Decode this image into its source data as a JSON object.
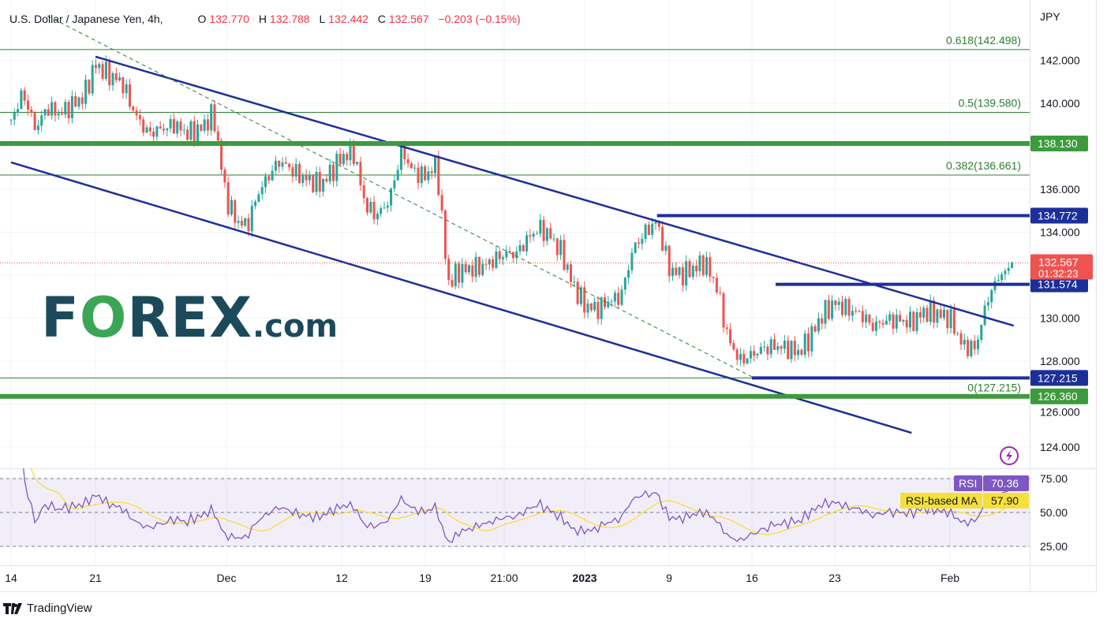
{
  "header": {
    "symbol": "U.S. Dollar / Japanese Yen, 4h,",
    "open_label": "O",
    "open": "132.770",
    "high_label": "H",
    "high": "132.788",
    "low_label": "L",
    "low": "132.442",
    "close_label": "C",
    "close": "132.567",
    "change": "−0.203 (−0.15%)"
  },
  "logo": {
    "text": "FOREX.com"
  },
  "footer": {
    "brand": "TradingView"
  },
  "colors": {
    "up": "#26a69a",
    "down": "#ef5350",
    "channel": "#1c2f99",
    "support": "#3d9a3d",
    "fib": "#2e7d32",
    "rsi": "#7e57c2",
    "rsi_ma": "#f5e03a"
  },
  "chart_data": {
    "type": "candlestick",
    "currency_label": "JPY",
    "y_ticks": [
      "142.000",
      "140.000",
      "138.000",
      "136.000",
      "134.000",
      "132.000",
      "130.000",
      "128.000",
      "126.000",
      "124.000"
    ],
    "ylim": [
      122.2,
      144.6
    ],
    "x_ticks": [
      "14",
      "21",
      "Dec",
      "12",
      "19",
      "21:00",
      "2023",
      "9",
      "16",
      "23",
      "Feb"
    ],
    "price_path": [
      [
        "2022-11-14",
        139.2
      ],
      [
        "2022-11-15",
        140.5
      ],
      [
        "2022-11-16",
        138.8
      ],
      [
        "2022-11-17",
        139.8
      ],
      [
        "2022-11-18",
        139.5
      ],
      [
        "2022-11-20",
        140.3
      ],
      [
        "2022-11-21",
        141.8
      ],
      [
        "2022-11-22",
        141.3
      ],
      [
        "2022-11-23",
        141.0
      ],
      [
        "2022-11-24",
        139.5
      ],
      [
        "2022-11-25",
        138.6
      ],
      [
        "2022-11-27",
        139.0
      ],
      [
        "2022-11-28",
        138.6
      ],
      [
        "2022-11-29",
        138.8
      ],
      [
        "2022-11-30",
        139.5
      ],
      [
        "2022-12-01",
        135.5
      ],
      [
        "2022-12-02",
        134.5
      ],
      [
        "2022-12-03",
        134.3
      ],
      [
        "2022-12-04",
        135.8
      ],
      [
        "2022-12-05",
        136.6
      ],
      [
        "2022-12-06",
        137.3
      ],
      [
        "2022-12-07",
        137.0
      ],
      [
        "2022-12-08",
        136.6
      ],
      [
        "2022-12-09",
        136.4
      ],
      [
        "2022-12-10",
        136.2
      ],
      [
        "2022-12-11",
        136.8
      ],
      [
        "2022-12-12",
        137.5
      ],
      [
        "2022-12-13",
        137.7
      ],
      [
        "2022-12-14",
        135.2
      ],
      [
        "2022-12-15",
        134.8
      ],
      [
        "2022-12-16",
        135.5
      ],
      [
        "2022-12-17",
        137.8
      ],
      [
        "2022-12-18",
        136.8
      ],
      [
        "2022-12-19",
        136.6
      ],
      [
        "2022-12-20",
        137.2
      ],
      [
        "2022-12-21",
        131.6
      ],
      [
        "2022-12-22",
        132.2
      ],
      [
        "2022-12-24",
        132.4
      ],
      [
        "2022-12-26",
        133.0
      ],
      [
        "2022-12-27",
        133.0
      ],
      [
        "2022-12-28",
        133.7
      ],
      [
        "2022-12-29",
        134.2
      ],
      [
        "2022-12-30",
        133.8
      ],
      [
        "2022-12-31",
        133.0
      ],
      [
        "2023-01-01",
        131.5
      ],
      [
        "2023-01-02",
        130.6
      ],
      [
        "2023-01-03",
        130.4
      ],
      [
        "2023-01-04",
        130.8
      ],
      [
        "2023-01-05",
        131.0
      ],
      [
        "2023-01-06",
        133.2
      ],
      [
        "2023-01-07",
        134.0
      ],
      [
        "2023-01-08",
        134.5
      ],
      [
        "2023-01-09",
        132.3
      ],
      [
        "2023-01-10",
        132.0
      ],
      [
        "2023-01-11",
        132.3
      ],
      [
        "2023-01-12",
        132.6
      ],
      [
        "2023-01-13",
        131.5
      ],
      [
        "2023-01-14",
        129.0
      ],
      [
        "2023-01-15",
        128.0
      ],
      [
        "2023-01-16",
        128.3
      ],
      [
        "2023-01-17",
        128.6
      ],
      [
        "2023-01-18",
        128.7
      ],
      [
        "2023-01-19",
        128.6
      ],
      [
        "2023-01-20",
        128.4
      ],
      [
        "2023-01-21",
        129.2
      ],
      [
        "2023-01-22",
        130.2
      ],
      [
        "2023-01-23",
        130.7
      ],
      [
        "2023-01-24",
        130.4
      ],
      [
        "2023-01-25",
        130.2
      ],
      [
        "2023-01-26",
        129.6
      ],
      [
        "2023-01-27",
        129.9
      ],
      [
        "2023-01-28",
        129.9
      ],
      [
        "2023-01-29",
        129.8
      ],
      [
        "2023-01-30",
        130.3
      ],
      [
        "2023-01-31",
        130.2
      ],
      [
        "2023-02-01",
        130.0
      ],
      [
        "2023-02-02",
        128.7
      ],
      [
        "2023-02-03",
        128.6
      ],
      [
        "2023-02-04",
        131.0
      ],
      [
        "2023-02-05",
        132.0
      ],
      [
        "2023-02-06",
        132.567
      ]
    ],
    "last_price": {
      "value": "132.567",
      "countdown": "01:32:23"
    },
    "levels": [
      {
        "value": "138.130",
        "kind": "support",
        "line": "thick-green"
      },
      {
        "value": "134.772",
        "kind": "resistance",
        "line": "blue",
        "from": "2023-01-08"
      },
      {
        "value": "131.574",
        "kind": "resistance",
        "line": "blue",
        "from": "2023-01-18"
      },
      {
        "value": "127.215",
        "kind": "support",
        "line": "blue",
        "from": "2023-01-16"
      },
      {
        "value": "126.360",
        "kind": "support",
        "line": "thick-green"
      }
    ],
    "fibonacci": [
      {
        "label": "0.618(142.498)",
        "value": 142.498
      },
      {
        "label": "0.5(139.580)",
        "value": 139.58
      },
      {
        "label": "0.382(136.661)",
        "value": 136.661
      },
      {
        "label": "0(127.215)",
        "value": 127.215
      }
    ],
    "trendlines": [
      {
        "name": "channel-upper",
        "from": [
          "2022-11-21",
          142.17
        ],
        "to": [
          "2023-02-06",
          129.65
        ],
        "style": "solid"
      },
      {
        "name": "channel-lower",
        "from": [
          "2022-11-14",
          137.25
        ],
        "to": [
          "2023-01-29",
          124.66
        ],
        "style": "solid"
      },
      {
        "name": "dashed-trend",
        "from": [
          "2022-11-17",
          144.07
        ],
        "to": [
          "2023-01-16",
          127.27
        ],
        "style": "dashed"
      }
    ],
    "rsi": {
      "label": "RSI",
      "value": "70.36",
      "ma_label": "RSI-based MA",
      "ma_value": "57.90",
      "ticks": [
        "75.00",
        "50.00",
        "25.00"
      ],
      "upper_band": 70,
      "lower_band": 30
    }
  }
}
